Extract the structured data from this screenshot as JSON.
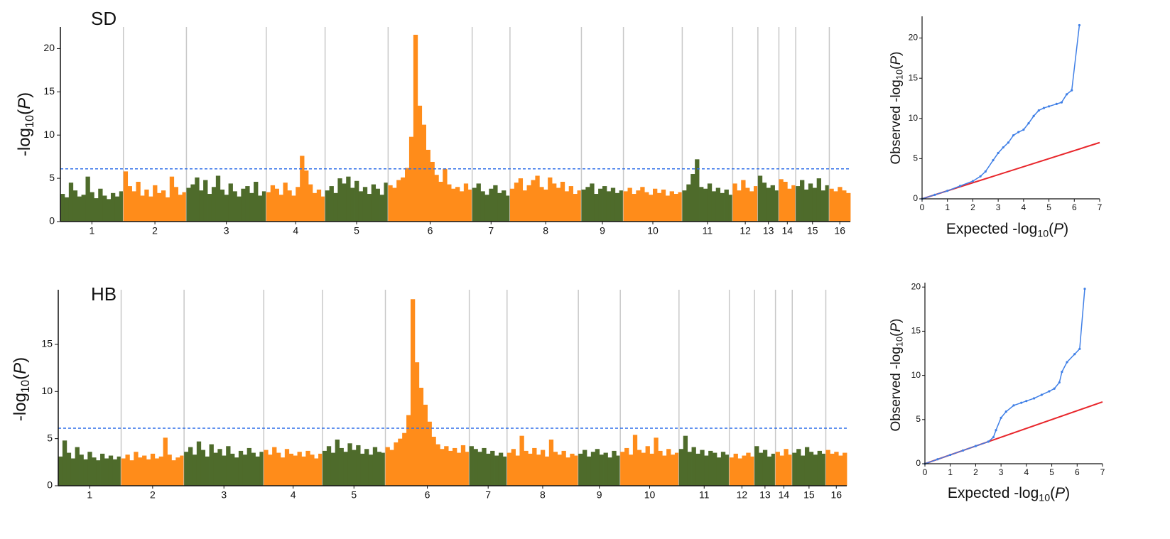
{
  "chart_data": [
    {
      "type": "manhattan",
      "title": "SD",
      "y_label": [
        "-log",
        "10",
        "(",
        "P",
        ")"
      ],
      "categories": [
        "1",
        "2",
        "3",
        "4",
        "5",
        "6",
        "7",
        "8",
        "9",
        "10",
        "11",
        "12",
        "13",
        "14",
        "15",
        "16"
      ],
      "values": [
        [
          3.2,
          2.8,
          4.5,
          3.6,
          2.9,
          3.1,
          5.2,
          3.4,
          2.7,
          3.8,
          3.0,
          2.6,
          3.3,
          2.9,
          3.5
        ],
        [
          5.8,
          4.1,
          3.5,
          4.6,
          3.0,
          3.7,
          2.9,
          4.2,
          3.3,
          3.6,
          2.8,
          5.2,
          4.0,
          3.1,
          3.4
        ],
        [
          3.9,
          4.3,
          5.1,
          3.6,
          4.8,
          3.2,
          4.0,
          5.3,
          3.7,
          3.1,
          4.4,
          3.5,
          2.9,
          3.8,
          4.1,
          3.3,
          4.6,
          3.0,
          3.5
        ],
        [
          3.4,
          4.2,
          3.8,
          3.1,
          4.5,
          3.6,
          3.0,
          4.0,
          7.6,
          5.9,
          4.3,
          3.3,
          3.7,
          2.9
        ],
        [
          3.6,
          4.1,
          3.3,
          5.0,
          4.4,
          5.2,
          3.9,
          4.7,
          3.5,
          4.0,
          3.2,
          4.3,
          3.8,
          3.1,
          4.5
        ],
        [
          4.2,
          3.9,
          4.8,
          5.1,
          6.2,
          9.8,
          21.6,
          13.4,
          11.2,
          8.3,
          6.9,
          5.4,
          4.6,
          6.1,
          4.3,
          3.8,
          4.0,
          3.5,
          4.4,
          3.7
        ],
        [
          3.9,
          4.4,
          3.5,
          3.1,
          3.8,
          4.2,
          3.3,
          3.6,
          3.0
        ],
        [
          3.8,
          4.5,
          5.0,
          3.6,
          4.2,
          4.8,
          5.3,
          4.0,
          3.7,
          5.1,
          4.4,
          3.9,
          4.6,
          3.5,
          4.1,
          3.2,
          3.6
        ],
        [
          3.7,
          4.0,
          4.4,
          3.2,
          3.8,
          4.1,
          3.5,
          3.9,
          3.3,
          3.6
        ],
        [
          3.5,
          3.9,
          3.2,
          3.6,
          4.0,
          3.4,
          3.1,
          3.8,
          3.3,
          3.7,
          3.0,
          3.5,
          3.2,
          3.4
        ],
        [
          3.6,
          4.3,
          5.5,
          7.2,
          4.0,
          3.8,
          4.4,
          3.5,
          3.9,
          3.3,
          3.7,
          3.1
        ],
        [
          4.4,
          3.6,
          4.8,
          3.9,
          3.5,
          4.1
        ],
        [
          5.3,
          4.5,
          3.9,
          4.2,
          3.6
        ],
        [
          4.9,
          4.6,
          3.8,
          4.2
        ],
        [
          4.1,
          4.8,
          3.7,
          4.4,
          3.9,
          5.0,
          3.6,
          4.2
        ],
        [
          3.8,
          3.5,
          4.0,
          3.6,
          3.3
        ]
      ],
      "colors": [
        "#4e6b2b",
        "#ff8c1a"
      ],
      "threshold": 6.1,
      "threshold_color": "#2f6fe8",
      "ylim": [
        0,
        22.5
      ],
      "yticks": [
        0,
        5,
        10,
        15,
        20
      ]
    },
    {
      "type": "qq",
      "x_label": [
        "Expected -log",
        "10",
        "(",
        "P",
        ")"
      ],
      "y_label": [
        "Observed -log",
        "10",
        "(",
        "P",
        ")"
      ],
      "x": [
        0,
        0.5,
        1,
        1.5,
        2,
        2.3,
        2.5,
        2.8,
        3,
        3.2,
        3.4,
        3.6,
        3.8,
        4.0,
        4.2,
        4.4,
        4.6,
        4.8,
        5.0,
        5.3,
        5.5,
        5.7,
        5.9,
        6.2
      ],
      "y": [
        0,
        0.5,
        1,
        1.6,
        2.2,
        2.8,
        3.4,
        4.8,
        5.7,
        6.4,
        7.0,
        7.9,
        8.3,
        8.6,
        9.4,
        10.3,
        11.0,
        11.3,
        11.5,
        11.8,
        12.0,
        13.0,
        13.5,
        21.6
      ],
      "color": "#3f7fe6",
      "reference_color": "#e8262b",
      "xlim": [
        0,
        7
      ],
      "xticks": [
        0,
        1,
        2,
        3,
        4,
        5,
        6,
        7
      ],
      "ylim": [
        0,
        22.7
      ],
      "yticks": [
        0,
        5,
        10,
        15,
        20
      ]
    },
    {
      "type": "manhattan",
      "title": "HB",
      "y_label": [
        "-log",
        "10",
        "(",
        "P",
        ")"
      ],
      "categories": [
        "1",
        "2",
        "3",
        "4",
        "5",
        "6",
        "7",
        "8",
        "9",
        "10",
        "11",
        "12",
        "13",
        "14",
        "15",
        "16"
      ],
      "values": [
        [
          3.1,
          4.8,
          3.5,
          2.9,
          4.1,
          3.3,
          2.8,
          3.6,
          3.0,
          2.7,
          3.4,
          2.9,
          3.2,
          2.8,
          3.1
        ],
        [
          2.9,
          3.3,
          2.7,
          3.6,
          3.0,
          3.2,
          2.8,
          3.4,
          2.9,
          3.1,
          5.1,
          3.3,
          2.7,
          3.0,
          3.2
        ],
        [
          3.6,
          4.1,
          3.3,
          4.7,
          3.8,
          3.1,
          4.4,
          3.5,
          3.9,
          3.2,
          4.2,
          3.4,
          3.0,
          3.7,
          3.3,
          4.0,
          3.5,
          3.1,
          3.6
        ],
        [
          3.8,
          3.3,
          4.1,
          3.5,
          3.0,
          3.9,
          3.4,
          3.2,
          3.6,
          3.1,
          3.7,
          3.3,
          2.9,
          3.4
        ],
        [
          3.7,
          4.2,
          3.5,
          4.9,
          4.0,
          3.6,
          4.5,
          3.8,
          4.3,
          3.4,
          3.9,
          3.3,
          4.1,
          3.6,
          3.5
        ],
        [
          4.1,
          3.8,
          4.6,
          5.0,
          5.6,
          7.5,
          19.8,
          13.1,
          10.4,
          8.6,
          6.8,
          5.2,
          4.4,
          3.9,
          4.2,
          3.7,
          4.0,
          3.5,
          4.3,
          3.6
        ],
        [
          4.2,
          3.9,
          3.6,
          4.0,
          3.4,
          3.7,
          3.2,
          3.5,
          3.1
        ],
        [
          3.5,
          3.9,
          3.2,
          5.3,
          3.7,
          3.4,
          4.0,
          3.3,
          3.8,
          3.1,
          4.9,
          3.6,
          3.3,
          3.7,
          3.0,
          3.4,
          3.2
        ],
        [
          3.4,
          3.8,
          3.1,
          3.6,
          3.9,
          3.3,
          3.5,
          3.0,
          3.7,
          3.2
        ],
        [
          3.6,
          4.0,
          3.3,
          5.4,
          3.8,
          3.5,
          4.2,
          3.4,
          5.1,
          3.7,
          3.2,
          3.9,
          3.3,
          3.5
        ],
        [
          3.9,
          5.3,
          3.6,
          4.1,
          3.4,
          3.8,
          3.2,
          3.7,
          3.5,
          3.0,
          3.6,
          3.3
        ],
        [
          3.0,
          3.4,
          2.9,
          3.2,
          3.5,
          3.1
        ],
        [
          4.2,
          3.5,
          3.8,
          3.1,
          3.4
        ],
        [
          3.6,
          3.2,
          3.9,
          3.3
        ],
        [
          3.5,
          3.9,
          3.2,
          4.1,
          3.6,
          3.3,
          3.7,
          3.4
        ],
        [
          3.8,
          3.4,
          3.6,
          3.2,
          3.5
        ]
      ],
      "colors": [
        "#4e6b2b",
        "#ff8c1a"
      ],
      "threshold": 6.1,
      "threshold_color": "#2f6fe8",
      "ylim": [
        0,
        20.8
      ],
      "yticks": [
        0,
        5,
        10,
        15
      ]
    },
    {
      "type": "qq",
      "x_label": [
        "Expected -log",
        "10",
        "(",
        "P",
        ")"
      ],
      "y_label": [
        "Observed -log",
        "10",
        "(",
        "P",
        ")"
      ],
      "x": [
        0,
        0.5,
        1,
        1.5,
        2,
        2.5,
        2.7,
        2.8,
        3,
        3.2,
        3.5,
        3.8,
        4.0,
        4.3,
        4.6,
        4.9,
        5.1,
        5.3,
        5.4,
        5.6,
        5.9,
        6.1,
        6.3
      ],
      "y": [
        0,
        0.5,
        1,
        1.5,
        2,
        2.5,
        3.0,
        3.8,
        5.2,
        5.9,
        6.6,
        6.9,
        7.1,
        7.4,
        7.8,
        8.2,
        8.5,
        9.2,
        10.4,
        11.5,
        12.4,
        13.0,
        19.8
      ],
      "color": "#3f7fe6",
      "reference_color": "#e8262b",
      "xlim": [
        0,
        7
      ],
      "xticks": [
        0,
        1,
        2,
        3,
        4,
        5,
        6,
        7
      ],
      "ylim": [
        0,
        20.5
      ],
      "yticks": [
        0,
        5,
        10,
        15,
        20
      ]
    }
  ]
}
